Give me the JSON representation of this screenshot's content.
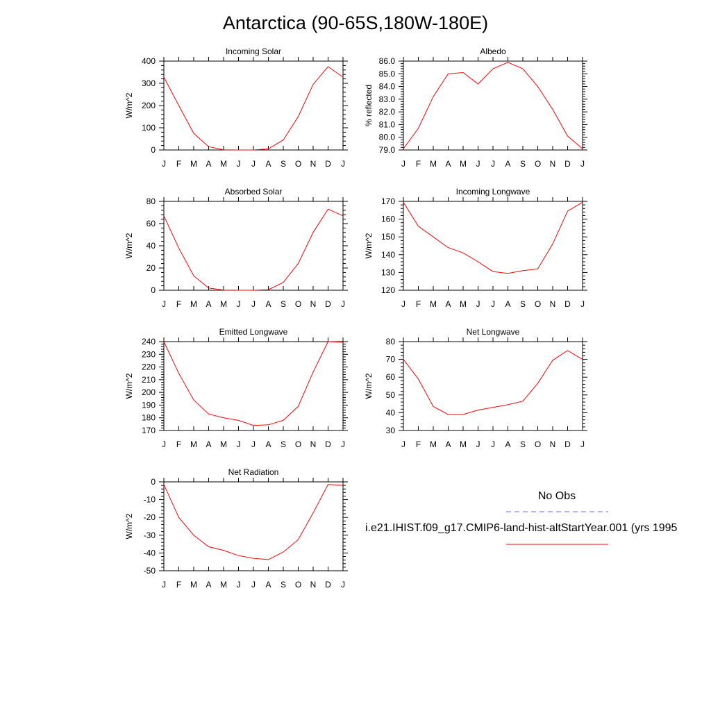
{
  "figure_title": "Antarctica (90-65S,180W-180E)",
  "legend": {
    "obs_label": "No Obs",
    "obs_color": "#7070e0",
    "model_label": "i.e21.IHIST.f09_g17.CMIP6-land-hist-altStartYear.001 (yrs 1995",
    "model_color": "#ff0000"
  },
  "chart_data": [
    {
      "type": "line",
      "title": "Incoming Solar",
      "ylabel": "W/m^2",
      "x": [
        "J",
        "F",
        "M",
        "A",
        "M",
        "J",
        "J",
        "A",
        "S",
        "O",
        "N",
        "D",
        "J"
      ],
      "ylim": [
        0,
        400
      ],
      "yticks": [
        "0",
        "100",
        "200",
        "300",
        "400"
      ],
      "series": [
        {
          "values": [
            328,
            200,
            75,
            15,
            1,
            0,
            0,
            5,
            45,
            150,
            295,
            375,
            328
          ]
        }
      ]
    },
    {
      "type": "line",
      "title": "Albedo",
      "ylabel": "% reflected",
      "x": [
        "J",
        "F",
        "M",
        "A",
        "M",
        "J",
        "J",
        "A",
        "S",
        "O",
        "N",
        "D",
        "J"
      ],
      "ylim": [
        79,
        86
      ],
      "yticks": [
        "79.0",
        "80.0",
        "81.0",
        "82.0",
        "83.0",
        "84.0",
        "85.0",
        "86.0"
      ],
      "series": [
        {
          "values": [
            79.1,
            80.7,
            83.2,
            85.0,
            85.1,
            84.2,
            85.4,
            85.9,
            85.4,
            84.0,
            82.2,
            80.1,
            79.1
          ]
        }
      ]
    },
    {
      "type": "line",
      "title": "Absorbed Solar",
      "ylabel": "W/m^2",
      "x": [
        "J",
        "F",
        "M",
        "A",
        "M",
        "J",
        "J",
        "A",
        "S",
        "O",
        "N",
        "D",
        "J"
      ],
      "ylim": [
        0,
        80
      ],
      "yticks": [
        "0",
        "20",
        "40",
        "60",
        "80"
      ],
      "series": [
        {
          "values": [
            67,
            38,
            13,
            2,
            0.2,
            0,
            0,
            0.5,
            7,
            24,
            52,
            73,
            67
          ]
        }
      ]
    },
    {
      "type": "line",
      "title": "Incoming Longwave",
      "ylabel": "W/m^2",
      "x": [
        "J",
        "F",
        "M",
        "A",
        "M",
        "J",
        "J",
        "A",
        "S",
        "O",
        "N",
        "D",
        "J"
      ],
      "ylim": [
        120,
        170
      ],
      "yticks": [
        "120",
        "130",
        "140",
        "150",
        "160",
        "170"
      ],
      "series": [
        {
          "values": [
            169.5,
            156,
            150,
            144,
            141,
            136,
            130.5,
            129.5,
            131,
            132,
            146,
            164.5,
            169.5
          ]
        }
      ]
    },
    {
      "type": "line",
      "title": "Emitted Longwave",
      "ylabel": "W/m^2",
      "x": [
        "J",
        "F",
        "M",
        "A",
        "M",
        "J",
        "J",
        "A",
        "S",
        "O",
        "N",
        "D",
        "J"
      ],
      "ylim": [
        170,
        240
      ],
      "yticks": [
        "170",
        "180",
        "190",
        "200",
        "210",
        "220",
        "230",
        "240"
      ],
      "series": [
        {
          "values": [
            240,
            215,
            194,
            183,
            180,
            178,
            174,
            174.5,
            178,
            189,
            216,
            240,
            239.5
          ]
        }
      ]
    },
    {
      "type": "line",
      "title": "Net Longwave",
      "ylabel": "W/m^2",
      "x": [
        "J",
        "F",
        "M",
        "A",
        "M",
        "J",
        "J",
        "A",
        "S",
        "O",
        "N",
        "D",
        "J"
      ],
      "ylim": [
        30,
        80
      ],
      "yticks": [
        "30",
        "40",
        "50",
        "60",
        "70",
        "80"
      ],
      "series": [
        {
          "values": [
            70,
            59,
            43.5,
            39,
            39,
            41.5,
            43,
            44.5,
            46.5,
            56.5,
            69.5,
            75,
            70
          ]
        }
      ]
    },
    {
      "type": "line",
      "title": "Net Radiation",
      "ylabel": "W/m^2",
      "x": [
        "J",
        "F",
        "M",
        "A",
        "M",
        "J",
        "J",
        "A",
        "S",
        "O",
        "N",
        "D",
        "J"
      ],
      "ylim": [
        -50,
        0
      ],
      "yticks": [
        "-50",
        "-40",
        "-30",
        "-20",
        "-10",
        "0"
      ],
      "series": [
        {
          "values": [
            -1.5,
            -20,
            -30,
            -36.5,
            -38.5,
            -41.5,
            -43,
            -43.7,
            -39.5,
            -32.5,
            -17.5,
            -1.5,
            -2
          ]
        }
      ]
    }
  ]
}
